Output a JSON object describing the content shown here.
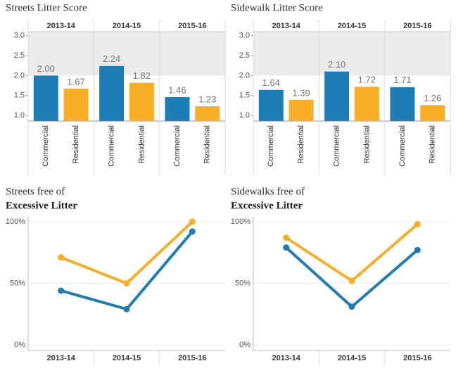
{
  "chart_data": [
    {
      "type": "bar",
      "title": "Streets Litter Score",
      "categories": [
        "2013-14",
        "2014-15",
        "2015-16"
      ],
      "series": [
        {
          "name": "Commercial",
          "color": "#1f7db6",
          "values": [
            2.0,
            2.24,
            1.46
          ],
          "value_labels": [
            "2.00",
            "2.24",
            "1.46"
          ]
        },
        {
          "name": "Residential",
          "color": "#f9ae27",
          "values": [
            1.67,
            1.82,
            1.23
          ],
          "value_labels": [
            "1.67",
            "1.82",
            "1.23"
          ]
        }
      ],
      "ylim": [
        0.86,
        3.1
      ],
      "yticks": [
        {
          "value": 1,
          "label": "1.0"
        },
        1.5,
        {
          "value": 2,
          "label": "2.0"
        },
        2.5,
        {
          "value": 3,
          "label": "3.0"
        }
      ],
      "band": [
        2,
        3.1
      ],
      "band_color": "#ebebeb"
    },
    {
      "type": "bar",
      "title": "Sidewalk Litter Score",
      "categories": [
        "2013-14",
        "2014-15",
        "2015-16"
      ],
      "series": [
        {
          "name": "Commercial",
          "color": "#1f7db6",
          "values": [
            1.64,
            2.1,
            1.71
          ],
          "value_labels": [
            "1.64",
            "2.10",
            "1.71"
          ]
        },
        {
          "name": "Residential",
          "color": "#f9ae27",
          "values": [
            1.39,
            1.72,
            1.26
          ],
          "value_labels": [
            "1.39",
            "1.72",
            "1.26"
          ]
        }
      ],
      "ylim": [
        0.86,
        3.1
      ],
      "yticks": [
        {
          "value": 1,
          "label": "1.0"
        },
        1.5,
        {
          "value": 2,
          "label": "2.0"
        },
        2.5,
        {
          "value": 3,
          "label": "3.0"
        }
      ],
      "band": [
        2,
        3.1
      ],
      "band_color": "#ebebeb"
    },
    {
      "type": "line",
      "title": "Streets free of",
      "subtitle": "Excessive Litter",
      "categories": [
        "2013-14",
        "2014-15",
        "2015-16"
      ],
      "series": [
        {
          "color": "#f9ae27",
          "values": [
            71,
            50,
            100
          ]
        },
        {
          "color": "#1f7db6",
          "values": [
            44,
            29,
            92
          ]
        }
      ],
      "ylim": [
        0,
        100
      ],
      "yticks": [
        {
          "value": 0,
          "label": "0%"
        },
        {
          "value": 50,
          "label": "50%"
        },
        {
          "value": 100,
          "label": "100%"
        }
      ],
      "grid": true
    },
    {
      "type": "line",
      "title": "Sidewalks free of",
      "subtitle": "Excessive Litter",
      "categories": [
        "2013-14",
        "2014-15",
        "2015-16"
      ],
      "series": [
        {
          "color": "#f9ae27",
          "values": [
            87,
            52,
            98
          ]
        },
        {
          "color": "#1f7db6",
          "values": [
            79,
            31,
            77
          ]
        }
      ],
      "ylim": [
        0,
        100
      ],
      "yticks": [
        {
          "value": 0,
          "label": "0%"
        },
        {
          "value": 50,
          "label": "50%"
        },
        {
          "value": 100,
          "label": "100%"
        }
      ],
      "grid": true
    }
  ]
}
